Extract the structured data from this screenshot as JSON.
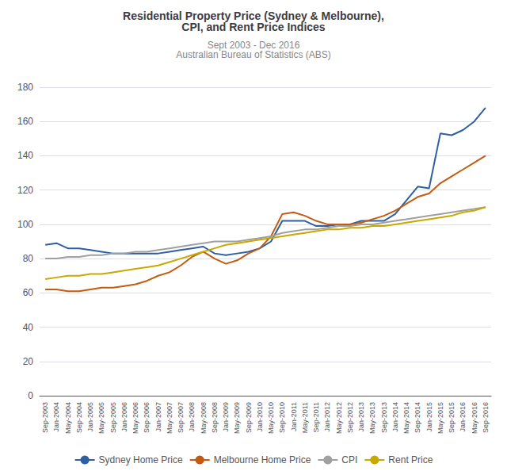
{
  "chart_data": {
    "type": "line",
    "title": "Residential Property Price (Sydney & Melbourne),\nCPI, and Rent Price Indices",
    "subtitle": "Sept 2003 - Dec 2016\nAustralian Bureau of Statistics (ABS)",
    "categories": [
      "Sep-2003",
      "Jan-2004",
      "May-2004",
      "Sep-2004",
      "Jan-2005",
      "May-2005",
      "Sep-2005",
      "Jan-2006",
      "May-2006",
      "Sep-2006",
      "Jan-2007",
      "May-2007",
      "Sep-2007",
      "Jan-2008",
      "May-2008",
      "Sep-2008",
      "Jan-2009",
      "May-2009",
      "Sep-2009",
      "Jan-2010",
      "May-2010",
      "Sep-2010",
      "Jan-2011",
      "May-2011",
      "Sep-2011",
      "Jan-2012",
      "May-2012",
      "Sep-2012",
      "Jan-2013",
      "May-2013",
      "Sep-2013",
      "Jan-2014",
      "May-2014",
      "Sep-2014",
      "Jan-2015",
      "May-2015",
      "Sep-2015",
      "Jan-2016",
      "May-2016",
      "Sep-2016"
    ],
    "series": [
      {
        "name": "Sydney Home Price",
        "color": "#2e5fa3",
        "values": [
          88,
          89,
          86,
          86,
          85,
          84,
          83,
          83,
          83,
          83,
          83,
          84,
          85,
          86,
          87,
          83,
          82,
          83,
          84,
          86,
          90,
          102,
          102,
          102,
          99,
          99,
          100,
          100,
          102,
          102,
          102,
          106,
          114,
          122,
          121,
          153,
          152,
          155,
          160,
          168
        ]
      },
      {
        "name": "Melbourne Home Price",
        "color": "#c55a11",
        "values": [
          62,
          62,
          61,
          61,
          62,
          63,
          63,
          64,
          65,
          67,
          70,
          72,
          76,
          81,
          84,
          80,
          77,
          79,
          83,
          86,
          93,
          106,
          107,
          105,
          102,
          100,
          100,
          100,
          101,
          103,
          105,
          108,
          112,
          116,
          118,
          124,
          128,
          132,
          136,
          140
        ]
      },
      {
        "name": "CPI",
        "color": "#a0a0a0",
        "values": [
          80,
          80,
          81,
          81,
          82,
          82,
          83,
          83,
          84,
          84,
          85,
          86,
          87,
          88,
          89,
          90,
          90,
          90,
          91,
          92,
          93,
          95,
          96,
          97,
          97,
          98,
          99,
          99,
          100,
          100,
          101,
          102,
          103,
          104,
          105,
          106,
          107,
          108,
          109,
          110
        ]
      },
      {
        "name": "Rent Price",
        "color": "#c9a800",
        "values": [
          68,
          69,
          70,
          70,
          71,
          71,
          72,
          73,
          74,
          75,
          76,
          78,
          80,
          82,
          84,
          86,
          88,
          89,
          90,
          91,
          92,
          93,
          94,
          95,
          96,
          97,
          97,
          98,
          98,
          99,
          99,
          100,
          101,
          102,
          103,
          104,
          105,
          107,
          108,
          110
        ]
      }
    ],
    "ylim": [
      0,
      180
    ],
    "yticks": [
      0,
      20,
      40,
      60,
      80,
      100,
      120,
      140,
      160,
      180
    ],
    "grid": true,
    "legend": "bottom"
  }
}
